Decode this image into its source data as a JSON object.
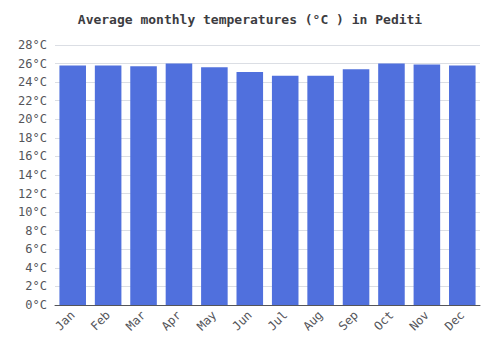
{
  "chart_data": {
    "type": "bar",
    "title": "Average monthly temperatures (°C ) in Pediti",
    "categories": [
      "Jan",
      "Feb",
      "Mar",
      "Apr",
      "May",
      "Jun",
      "Jul",
      "Aug",
      "Sep",
      "Oct",
      "Nov",
      "Dec"
    ],
    "values": [
      25.8,
      25.8,
      25.7,
      26.0,
      25.6,
      25.1,
      24.7,
      24.7,
      25.4,
      26.0,
      25.9,
      25.8
    ],
    "ylim": [
      0,
      28
    ],
    "yticks": [
      {
        "value": 0,
        "label": "0°C"
      },
      {
        "value": 2,
        "label": "2°C"
      },
      {
        "value": 4,
        "label": "4°C"
      },
      {
        "value": 6,
        "label": "6°C"
      },
      {
        "value": 8,
        "label": "8°C"
      },
      {
        "value": 10,
        "label": "10°C"
      },
      {
        "value": 12,
        "label": "12°C"
      },
      {
        "value": 14,
        "label": "14°C"
      },
      {
        "value": 16,
        "label": "16°C"
      },
      {
        "value": 18,
        "label": "18°C"
      },
      {
        "value": 20,
        "label": "20°C"
      },
      {
        "value": 22,
        "label": "22°C"
      },
      {
        "value": 24,
        "label": "24°C"
      },
      {
        "value": 26,
        "label": "26°C"
      },
      {
        "value": 28,
        "label": "28°C"
      }
    ],
    "grid": true
  }
}
